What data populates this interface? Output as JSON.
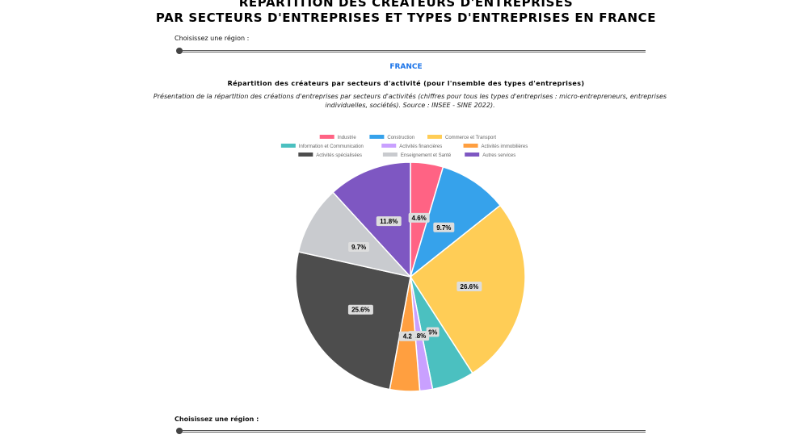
{
  "page": {
    "title_line1": "RÉPARTITION DES CRÉATEURS D'ENTREPRISES",
    "title_line2": "PAR SECTEURS D'ENTREPRISES ET TYPES D'ENTREPRISES EN FRANCE",
    "region_label_top": "Choisissez une région :",
    "region_label_bottom": "Choisissez une région :",
    "region_name": "FRANCE",
    "section_title": "Répartition des créateurs par secteurs d'activité (pour l'nsemble des types d'entreprises)",
    "section_description": "Présentation de la répartition des créations d'entreprises par secteurs d'activités (chiffres pour tous les types d'entreprises : micro-entrepreneurs, entreprises individuelles, sociétés). Source : INSEE - SINE 2022)."
  },
  "colors": {
    "industrie": "#ff6384",
    "construction": "#36a2eb",
    "commerce": "#ffcd56",
    "information": "#4bc0c0",
    "financieres": "#c9a0ff",
    "immobilieres": "#ff9f40",
    "specialisees": "#4d4d4d",
    "enseignement": "#c9cbcf",
    "autres": "#7e57c2",
    "region_accent": "#1a73e8"
  },
  "chart_data": {
    "type": "pie",
    "title": "",
    "categories": [
      "Industrie",
      "Construction",
      "Commerce et Transport",
      "Information et Communication",
      "Activités financières",
      "Activités immobilières",
      "Activités spécialisées",
      "Enseignement et Santé",
      "Autres services"
    ],
    "values": [
      4.6,
      9.7,
      26.6,
      6.0,
      1.8,
      4.2,
      25.6,
      9.7,
      11.8
    ],
    "labels": [
      "4.6%",
      "9.7%",
      "26.6%",
      "6%",
      "1.8%",
      "4.2",
      "25.6%",
      "9.7%",
      "11.8%"
    ],
    "legend_position": "top"
  }
}
